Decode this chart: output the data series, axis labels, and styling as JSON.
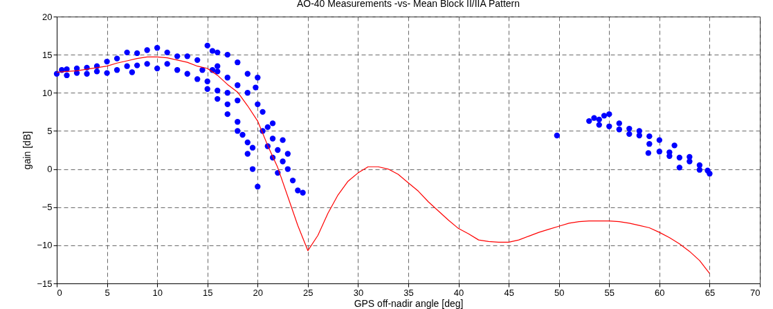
{
  "chart_data": {
    "type": "scatter",
    "title": "AO-40 Measurements -vs- Mean Block II/IIA Pattern",
    "xlabel": "GPS off-nadir angle [deg]",
    "ylabel": "gain [dB]",
    "xlim": [
      0,
      70
    ],
    "xticks": [
      0,
      5,
      10,
      15,
      20,
      25,
      30,
      35,
      40,
      45,
      50,
      55,
      60,
      65,
      70
    ],
    "ylim": [
      -15,
      20
    ],
    "yticks": [
      -15,
      -10,
      -5,
      0,
      5,
      10,
      15,
      20
    ],
    "grid": true,
    "marker": "circle",
    "series": [
      {
        "color": "#0000ff",
        "x": [
          0,
          0.5,
          1,
          1,
          2,
          2,
          3,
          3,
          4,
          4,
          5,
          5,
          6,
          6,
          7,
          7,
          7.5,
          8,
          8,
          9,
          9,
          10,
          10,
          11,
          11,
          12,
          12,
          13,
          13,
          14,
          14,
          15,
          16,
          17,
          18,
          19,
          19.5,
          20,
          15,
          16,
          17,
          18,
          18.5,
          19,
          19.5,
          15,
          15.5,
          16,
          17,
          18,
          19,
          19.8,
          20,
          15.5,
          16,
          17,
          18,
          19,
          20,
          20.5,
          21,
          21.5,
          22,
          22.5,
          23,
          23.5,
          24,
          24.5,
          22,
          21.5,
          21,
          20.5,
          23,
          22.5,
          21.5,
          17,
          18,
          16,
          14.5,
          49.8,
          53,
          53.5,
          54,
          54.5,
          55,
          54,
          55,
          56,
          56,
          57,
          57,
          58,
          58,
          59,
          59,
          60,
          60,
          61,
          61,
          61.5,
          62,
          62,
          63,
          63,
          64,
          64,
          64.8,
          65,
          58.9
        ],
        "values": [
          12.5,
          13,
          12.3,
          13.1,
          12.6,
          13.2,
          12.5,
          13.3,
          12.8,
          13.5,
          12.6,
          14.1,
          13,
          14.5,
          13.5,
          15.3,
          12.7,
          13.6,
          15.2,
          13.8,
          15.6,
          13.2,
          15.9,
          13.8,
          15.3,
          13,
          14.8,
          12.5,
          14.8,
          11.8,
          14.3,
          10.5,
          9.2,
          7.2,
          5,
          2,
          0,
          -2.3,
          11.5,
          10.3,
          8.5,
          6.2,
          4.5,
          3.5,
          2.8,
          16.2,
          15.5,
          15.3,
          15,
          14,
          12.5,
          10.7,
          12,
          13,
          12.8,
          12,
          11,
          10,
          8.5,
          7.5,
          5.5,
          4,
          2.5,
          1,
          0,
          -1.5,
          -2.8,
          -3.1,
          -0.5,
          1.5,
          3,
          5,
          2,
          3.8,
          6,
          10,
          9,
          13.5,
          13,
          4.4,
          6.3,
          6.7,
          6.5,
          7,
          7.2,
          5.8,
          5.6,
          6,
          5.2,
          5.3,
          4.6,
          5,
          4.4,
          4.3,
          3.3,
          3.8,
          2.3,
          2.2,
          1.7,
          3.1,
          1.5,
          0.2,
          1.6,
          1,
          0.5,
          -0.1,
          -0.2,
          -0.6,
          2.1
        ]
      },
      {
        "type": "line",
        "color": "#ff0000",
        "marker": "none",
        "line_style": "solid",
        "x": [
          0,
          1,
          2,
          3,
          4,
          5,
          6,
          7,
          8,
          9,
          10,
          11,
          12,
          13,
          14,
          15,
          16,
          17,
          18,
          19,
          20,
          21,
          22,
          23,
          24,
          25,
          26,
          27,
          28,
          29,
          30,
          31,
          32,
          33,
          34,
          35,
          36,
          37,
          38,
          39,
          40,
          41,
          42,
          43,
          44,
          45,
          46,
          47,
          48,
          49,
          50,
          51,
          52,
          53,
          54,
          55,
          56,
          57,
          58,
          59,
          60,
          61,
          62,
          63,
          64,
          65
        ],
        "values": [
          12.7,
          12.8,
          12.9,
          13.1,
          13.3,
          13.5,
          13.9,
          14.2,
          14.5,
          14.7,
          14.7,
          14.6,
          14.3,
          14.0,
          13.5,
          13.2,
          12.3,
          11.1,
          10.1,
          8.3,
          6.3,
          3.1,
          0.2,
          -3.6,
          -7.4,
          -10.7,
          -8.7,
          -5.8,
          -3.4,
          -1.6,
          -0.5,
          0.3,
          0.3,
          0,
          -0.7,
          -1.8,
          -2.9,
          -4.3,
          -5.5,
          -6.7,
          -7.8,
          -8.5,
          -9.3,
          -9.5,
          -9.6,
          -9.6,
          -9.3,
          -8.8,
          -8.3,
          -7.9,
          -7.5,
          -7.1,
          -6.9,
          -6.8,
          -6.8,
          -6.8,
          -6.9,
          -7.1,
          -7.4,
          -7.7,
          -8.3,
          -9.0,
          -9.8,
          -10.8,
          -12.0,
          -13.7
        ]
      }
    ]
  }
}
